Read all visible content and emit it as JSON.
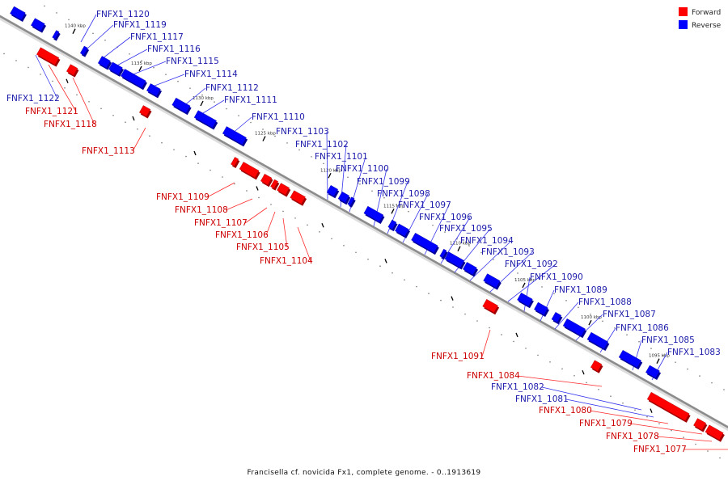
{
  "colors": {
    "forward": "#ff0000",
    "reverse": "#0000ff",
    "forward_text": "#cc0000",
    "reverse_text": "#1a1aaa",
    "track": "#999999"
  },
  "legend": {
    "forward": "Forward",
    "reverse": "Reverse"
  },
  "caption": "Francisella cf. novicida Fx1, complete genome. - 0..1913619",
  "kbp_labels": [
    "1140 kbp",
    "1135 kbp",
    "1130 kbp",
    "1125 kbp",
    "1120 kbp",
    "1115 kbp",
    "1110 kbp",
    "1105 kbp",
    "1100 kbp",
    "1095 kbp"
  ],
  "genes": [
    {
      "name": "FNFX1_1120",
      "strand": "reverse"
    },
    {
      "name": "FNFX1_1119",
      "strand": "reverse"
    },
    {
      "name": "FNFX1_1117",
      "strand": "reverse"
    },
    {
      "name": "FNFX1_1116",
      "strand": "reverse"
    },
    {
      "name": "FNFX1_1115",
      "strand": "reverse"
    },
    {
      "name": "FNFX1_1114",
      "strand": "reverse"
    },
    {
      "name": "FNFX1_1112",
      "strand": "reverse"
    },
    {
      "name": "FNFX1_1111",
      "strand": "reverse"
    },
    {
      "name": "FNFX1_1110",
      "strand": "reverse"
    },
    {
      "name": "FNFX1_1103",
      "strand": "reverse"
    },
    {
      "name": "FNFX1_1102",
      "strand": "reverse"
    },
    {
      "name": "FNFX1_1101",
      "strand": "reverse"
    },
    {
      "name": "FNFX1_1100",
      "strand": "reverse"
    },
    {
      "name": "FNFX1_1099",
      "strand": "reverse"
    },
    {
      "name": "FNFX1_1098",
      "strand": "reverse"
    },
    {
      "name": "FNFX1_1097",
      "strand": "reverse"
    },
    {
      "name": "FNFX1_1096",
      "strand": "reverse"
    },
    {
      "name": "FNFX1_1095",
      "strand": "reverse"
    },
    {
      "name": "FNFX1_1094",
      "strand": "reverse"
    },
    {
      "name": "FNFX1_1093",
      "strand": "reverse"
    },
    {
      "name": "FNFX1_1092",
      "strand": "reverse"
    },
    {
      "name": "FNFX1_1090",
      "strand": "reverse"
    },
    {
      "name": "FNFX1_1089",
      "strand": "reverse"
    },
    {
      "name": "FNFX1_1088",
      "strand": "reverse"
    },
    {
      "name": "FNFX1_1087",
      "strand": "reverse"
    },
    {
      "name": "FNFX1_1086",
      "strand": "reverse"
    },
    {
      "name": "FNFX1_1085",
      "strand": "reverse"
    },
    {
      "name": "FNFX1_1083",
      "strand": "reverse"
    },
    {
      "name": "FNFX1_1122",
      "strand": "reverse"
    },
    {
      "name": "FNFX1_1121",
      "strand": "forward"
    },
    {
      "name": "FNFX1_1118",
      "strand": "forward"
    },
    {
      "name": "FNFX1_1113",
      "strand": "forward"
    },
    {
      "name": "FNFX1_1109",
      "strand": "forward"
    },
    {
      "name": "FNFX1_1108",
      "strand": "forward"
    },
    {
      "name": "FNFX1_1107",
      "strand": "forward"
    },
    {
      "name": "FNFX1_1106",
      "strand": "forward"
    },
    {
      "name": "FNFX1_1105",
      "strand": "forward"
    },
    {
      "name": "FNFX1_1104",
      "strand": "forward"
    },
    {
      "name": "FNFX1_1091",
      "strand": "forward"
    },
    {
      "name": "FNFX1_1084",
      "strand": "forward"
    },
    {
      "name": "FNFX1_1082",
      "strand": "reverse"
    },
    {
      "name": "FNFX1_1081",
      "strand": "reverse"
    },
    {
      "name": "FNFX1_1080",
      "strand": "forward"
    },
    {
      "name": "FNFX1_1079",
      "strand": "forward"
    },
    {
      "name": "FNFX1_1078",
      "strand": "forward"
    },
    {
      "name": "FNFX1_1077",
      "strand": "forward"
    }
  ]
}
